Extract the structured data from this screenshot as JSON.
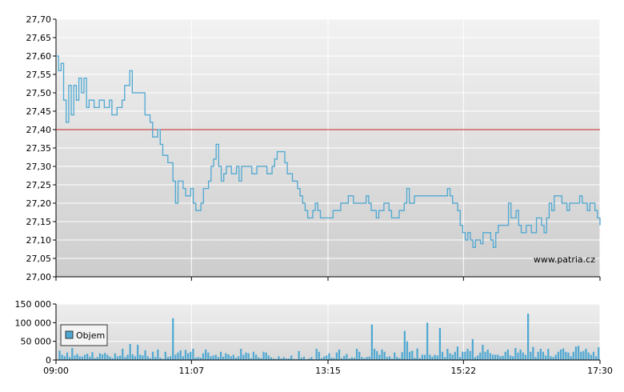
{
  "chart_data": [
    {
      "type": "line",
      "ylim": [
        27.0,
        27.7
      ],
      "yticks": [
        "27,00",
        "27,05",
        "27,10",
        "27,15",
        "27,20",
        "27,25",
        "27,30",
        "27,35",
        "27,40",
        "27,45",
        "27,50",
        "27,55",
        "27,60",
        "27,65",
        "27,70"
      ],
      "reference_line": {
        "value": 27.4,
        "color": "#cc2222"
      },
      "line_color": "#4ea8d2",
      "watermark": "www.patria.cz",
      "points": [
        [
          0,
          27.6
        ],
        [
          1,
          27.56
        ],
        [
          2,
          27.58
        ],
        [
          3,
          27.48
        ],
        [
          4,
          27.42
        ],
        [
          5,
          27.52
        ],
        [
          6,
          27.44
        ],
        [
          7,
          27.52
        ],
        [
          8,
          27.48
        ],
        [
          9,
          27.54
        ],
        [
          10,
          27.5
        ],
        [
          11,
          27.54
        ],
        [
          12,
          27.46
        ],
        [
          13,
          27.48
        ],
        [
          15,
          27.46
        ],
        [
          17,
          27.48
        ],
        [
          19,
          27.46
        ],
        [
          21,
          27.48
        ],
        [
          22,
          27.44
        ],
        [
          24,
          27.46
        ],
        [
          26,
          27.48
        ],
        [
          27,
          27.52
        ],
        [
          29,
          27.56
        ],
        [
          30,
          27.5
        ],
        [
          33,
          27.5
        ],
        [
          35,
          27.44
        ],
        [
          37,
          27.42
        ],
        [
          38,
          27.38
        ],
        [
          40,
          27.4
        ],
        [
          41,
          27.36
        ],
        [
          42,
          27.33
        ],
        [
          44,
          27.31
        ],
        [
          46,
          27.26
        ],
        [
          47,
          27.2
        ],
        [
          48,
          27.26
        ],
        [
          50,
          27.24
        ],
        [
          51,
          27.22
        ],
        [
          53,
          27.24
        ],
        [
          54,
          27.2
        ],
        [
          55,
          27.18
        ],
        [
          57,
          27.2
        ],
        [
          58,
          27.24
        ],
        [
          60,
          27.26
        ],
        [
          61,
          27.3
        ],
        [
          62,
          27.32
        ],
        [
          63,
          27.36
        ],
        [
          64,
          27.3
        ],
        [
          65,
          27.26
        ],
        [
          66,
          27.28
        ],
        [
          67,
          27.3
        ],
        [
          69,
          27.28
        ],
        [
          71,
          27.3
        ],
        [
          72,
          27.26
        ],
        [
          73,
          27.3
        ],
        [
          75,
          27.3
        ],
        [
          77,
          27.28
        ],
        [
          79,
          27.3
        ],
        [
          81,
          27.3
        ],
        [
          83,
          27.28
        ],
        [
          85,
          27.3
        ],
        [
          86,
          27.32
        ],
        [
          87,
          27.34
        ],
        [
          89,
          27.34
        ],
        [
          90,
          27.31
        ],
        [
          91,
          27.28
        ],
        [
          92,
          27.28
        ],
        [
          93,
          27.26
        ],
        [
          95,
          27.24
        ],
        [
          96,
          27.22
        ],
        [
          97,
          27.2
        ],
        [
          98,
          27.18
        ],
        [
          99,
          27.16
        ],
        [
          101,
          27.18
        ],
        [
          102,
          27.2
        ],
        [
          103,
          27.18
        ],
        [
          104,
          27.16
        ],
        [
          107,
          27.16
        ],
        [
          109,
          27.18
        ],
        [
          112,
          27.2
        ],
        [
          115,
          27.22
        ],
        [
          117,
          27.2
        ],
        [
          121,
          27.2
        ],
        [
          122,
          27.22
        ],
        [
          123,
          27.2
        ],
        [
          124,
          27.18
        ],
        [
          126,
          27.16
        ],
        [
          127,
          27.18
        ],
        [
          129,
          27.2
        ],
        [
          131,
          27.18
        ],
        [
          132,
          27.16
        ],
        [
          135,
          27.18
        ],
        [
          137,
          27.2
        ],
        [
          138,
          27.24
        ],
        [
          139,
          27.2
        ],
        [
          141,
          27.22
        ],
        [
          145,
          27.22
        ],
        [
          150,
          27.22
        ],
        [
          153,
          27.22
        ],
        [
          154,
          27.24
        ],
        [
          155,
          27.22
        ],
        [
          156,
          27.2
        ],
        [
          158,
          27.18
        ],
        [
          159,
          27.14
        ],
        [
          160,
          27.12
        ],
        [
          161,
          27.1
        ],
        [
          162,
          27.12
        ],
        [
          163,
          27.1
        ],
        [
          164,
          27.08
        ],
        [
          165,
          27.1
        ],
        [
          166,
          27.1
        ],
        [
          167,
          27.09
        ],
        [
          168,
          27.12
        ],
        [
          170,
          27.12
        ],
        [
          171,
          27.1
        ],
        [
          172,
          27.08
        ],
        [
          173,
          27.12
        ],
        [
          174,
          27.14
        ],
        [
          175,
          27.14
        ],
        [
          177,
          27.14
        ],
        [
          178,
          27.2
        ],
        [
          179,
          27.16
        ],
        [
          180,
          27.16
        ],
        [
          181,
          27.18
        ],
        [
          182,
          27.14
        ],
        [
          183,
          27.12
        ],
        [
          185,
          27.14
        ],
        [
          187,
          27.12
        ],
        [
          189,
          27.16
        ],
        [
          191,
          27.14
        ],
        [
          192,
          27.12
        ],
        [
          193,
          27.16
        ],
        [
          194,
          27.2
        ],
        [
          195,
          27.18
        ],
        [
          196,
          27.22
        ],
        [
          198,
          27.22
        ],
        [
          199,
          27.2
        ],
        [
          201,
          27.18
        ],
        [
          202,
          27.2
        ],
        [
          203,
          27.2
        ],
        [
          205,
          27.2
        ],
        [
          206,
          27.22
        ],
        [
          207,
          27.2
        ],
        [
          208,
          27.2
        ],
        [
          209,
          27.18
        ],
        [
          210,
          27.2
        ],
        [
          212,
          27.18
        ],
        [
          213,
          27.16
        ],
        [
          214,
          27.14
        ]
      ]
    },
    {
      "type": "bar",
      "ylim": [
        0,
        150000
      ],
      "yticks": [
        "0",
        "50 000",
        "100 000",
        "150 000"
      ],
      "xticks": [
        "09:00",
        "11:07",
        "13:15",
        "15:22",
        "17:30"
      ],
      "xrange_minutes": [
        0,
        510
      ],
      "bar_color": "#4ea8d2",
      "legend": {
        "label": "Objem",
        "placement": "top-left"
      },
      "values": [
        0,
        25000,
        14000,
        10000,
        20000,
        8000,
        32000,
        12000,
        16000,
        10000,
        9000,
        14000,
        17000,
        9000,
        21000,
        5000,
        8000,
        18000,
        15000,
        19000,
        14000,
        9000,
        5000,
        18000,
        10000,
        12000,
        30000,
        8000,
        14000,
        43000,
        15000,
        10000,
        41000,
        14000,
        12000,
        26000,
        10000,
        5000,
        22000,
        8000,
        28000,
        6000,
        3000,
        22000,
        8000,
        10000,
        112000,
        14000,
        20000,
        26000,
        10000,
        27000,
        18000,
        22000,
        30000,
        6000,
        8000,
        6000,
        18000,
        28000,
        20000,
        10000,
        12000,
        14000,
        8000,
        22000,
        9000,
        18000,
        15000,
        10000,
        14000,
        6000,
        10000,
        30000,
        14000,
        20000,
        18000,
        5000,
        22000,
        14000,
        7000,
        5000,
        22000,
        20000,
        12000,
        7000,
        4000,
        3000,
        10000,
        4000,
        8000,
        4000,
        4000,
        12000,
        3000,
        2000,
        24000,
        6000,
        9000,
        2000,
        4000,
        8000,
        2000,
        30000,
        22000,
        5000,
        9000,
        12000,
        18000,
        6000,
        5000,
        20000,
        28000,
        5000,
        11000,
        16000,
        4000,
        7000,
        6000,
        30000,
        22000,
        8000,
        5000,
        8000,
        9000,
        95000,
        30000,
        24000,
        14000,
        28000,
        22000,
        8000,
        10000,
        4000,
        20000,
        8000,
        5000,
        21000,
        78000,
        50000,
        22000,
        25000,
        6000,
        31000,
        5000,
        14000,
        14000,
        100000,
        14000,
        9000,
        14000,
        12000,
        86000,
        22000,
        8000,
        30000,
        18000,
        14000,
        22000,
        36000,
        8000,
        22000,
        22000,
        30000,
        24000,
        56000,
        8000,
        12000,
        20000,
        41000,
        22000,
        28000,
        18000,
        14000,
        14000,
        14000,
        10000,
        11000,
        22000,
        28000,
        12000,
        10000,
        32000,
        20000,
        28000,
        20000,
        14000,
        124000,
        22000,
        35000,
        8000,
        22000,
        30000,
        22000,
        12000,
        30000,
        10000,
        8000,
        14000,
        22000,
        28000,
        31000,
        22000,
        20000,
        10000,
        22000,
        36000,
        38000,
        22000,
        24000,
        30000,
        20000,
        14000,
        22000,
        10000,
        34000
      ]
    }
  ]
}
